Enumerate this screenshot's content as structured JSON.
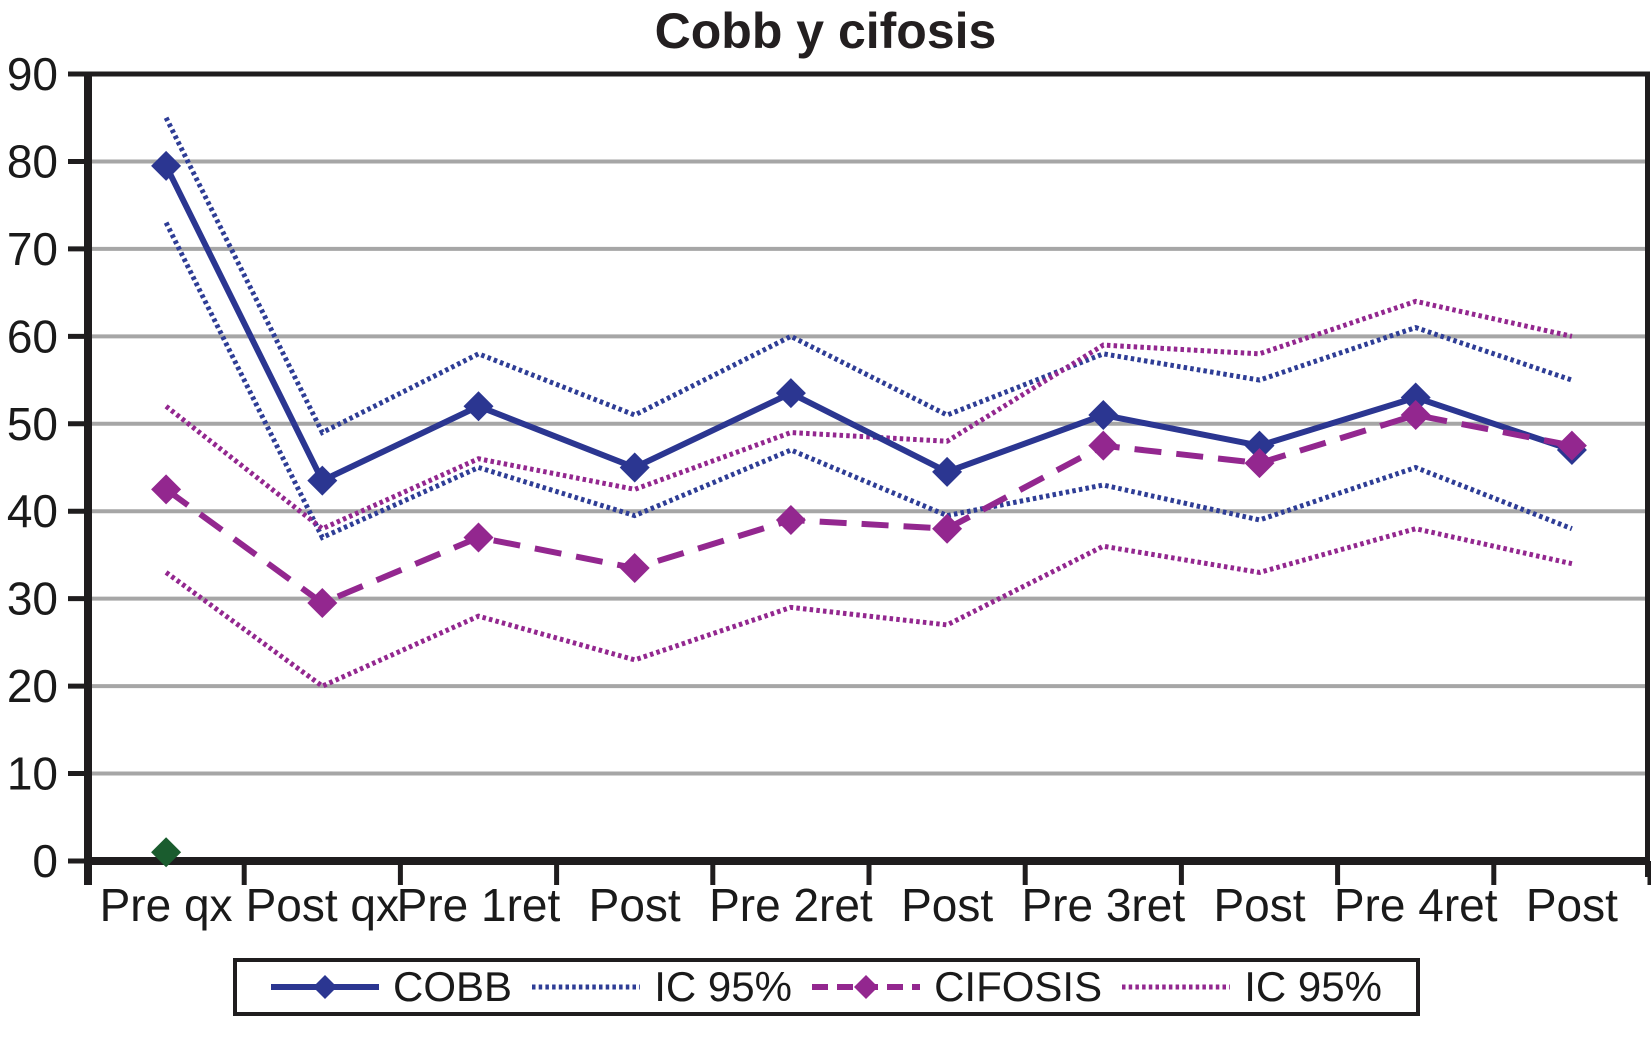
{
  "title": "Cobb y cifosis",
  "chart_data": {
    "type": "line",
    "title": "Cobb y cifosis",
    "xlabel": "",
    "ylabel": "",
    "categories": [
      "Pre qx",
      "Post qx",
      "Pre 1ret",
      "Post",
      "Pre 2ret",
      "Post",
      "Pre 3ret",
      "Post",
      "Pre 4ret",
      "Post"
    ],
    "ylim": [
      0,
      90
    ],
    "yticks": [
      0,
      10,
      20,
      30,
      40,
      50,
      60,
      70,
      80,
      90
    ],
    "grid": true,
    "legend_position": "bottom",
    "series": [
      {
        "name": "COBB",
        "legend": "COBB",
        "line": "solid",
        "marker": "diamond",
        "color": "#2b3691",
        "width": 6,
        "values": [
          79.5,
          43.5,
          52,
          45,
          53.5,
          44.5,
          51,
          47.5,
          53,
          47
        ]
      },
      {
        "name": "IC 95%",
        "band": "upper of COBB",
        "legend": "IC 95%",
        "line": "dotted",
        "marker": "none",
        "color": "#2e3d96",
        "width": 5,
        "values": [
          85,
          49,
          58,
          51,
          60,
          51,
          58,
          55,
          61,
          55
        ]
      },
      {
        "name": "IC 95%",
        "band": "lower of COBB",
        "legend": "IC 95%",
        "line": "dotted",
        "marker": "none",
        "color": "#2e3d96",
        "width": 5,
        "values": [
          73,
          37,
          45,
          39.5,
          47,
          39.5,
          43,
          39,
          45,
          38
        ]
      },
      {
        "name": "CIFOSIS",
        "legend": "CIFOSIS",
        "line": "dashed",
        "marker": "diamond",
        "color": "#93278f",
        "width": 6,
        "values": [
          42.5,
          29.5,
          37,
          33.5,
          39,
          38,
          47.5,
          45.5,
          51,
          47.5
        ]
      },
      {
        "name": "IC 95%",
        "band": "upper of CIFOSIS",
        "legend": "IC 95%",
        "line": "dotted",
        "marker": "none",
        "color": "#93278f",
        "width": 5,
        "values": [
          52,
          38,
          46,
          42.5,
          49,
          48,
          59,
          58,
          64,
          60
        ]
      },
      {
        "name": "IC 95%",
        "band": "lower of CIFOSIS",
        "legend": "IC 95%",
        "line": "dotted",
        "marker": "none",
        "color": "#93278f",
        "width": 5,
        "values": [
          33,
          20,
          28,
          23,
          29,
          27,
          36,
          33,
          38,
          34
        ]
      }
    ],
    "extra_points": [
      {
        "category": "Pre qx",
        "value": 1,
        "color": "#1a5c2e",
        "marker": "diamond"
      }
    ]
  },
  "legend": {
    "items": [
      {
        "label": "COBB",
        "line": "solid",
        "marker": "diamond",
        "color": "#2b3691"
      },
      {
        "label": "IC 95%",
        "line": "dotted",
        "marker": "none",
        "color": "#2e3d96"
      },
      {
        "label": "CIFOSIS",
        "line": "dashed",
        "marker": "diamond",
        "color": "#93278f"
      },
      {
        "label": "IC 95%",
        "line": "dotted",
        "marker": "none",
        "color": "#93278f"
      }
    ]
  },
  "colors": {
    "cobb_blue": "#2b3691",
    "cifosis_purple": "#93278f",
    "extra_point_green": "#1a5c2e",
    "gridline_gray": "#a6a6a6",
    "axis_black": "#1f1d1e",
    "background": "#ffffff"
  }
}
